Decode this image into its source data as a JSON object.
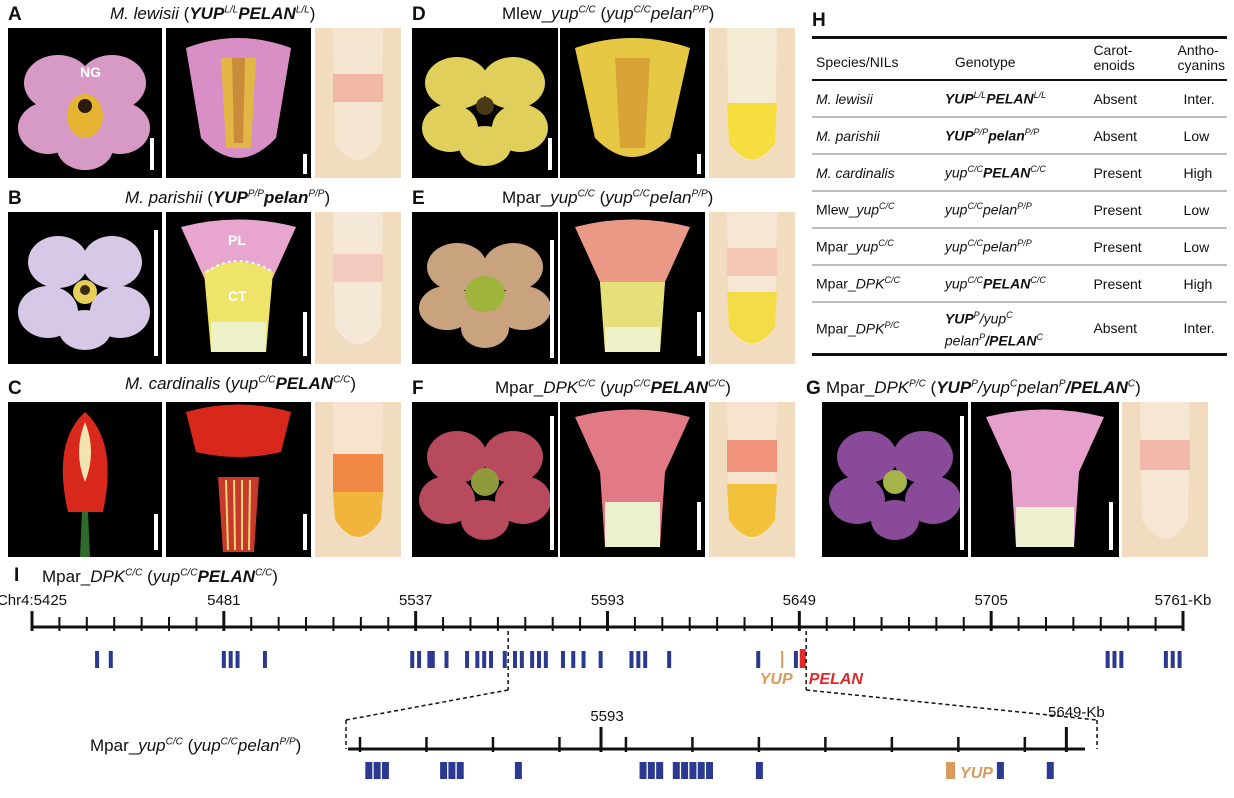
{
  "panels": {
    "A": {
      "letter": "A",
      "title_pre": "M. lewisii",
      "title_geno_a": "YUP",
      "title_sup_a": "L/L",
      "title_geno_b": "PELAN",
      "title_sup_b": "L/L",
      "label": "NG"
    },
    "B": {
      "letter": "B",
      "title_pre": "M. parishii",
      "title_geno_a": "YUP",
      "title_sup_a": "P/P",
      "title_geno_b": "pelan",
      "title_sup_b": "P/P",
      "label_pl": "PL",
      "label_ct": "CT"
    },
    "C": {
      "letter": "C",
      "title_pre": "M. cardinalis",
      "title_geno_a": "yup",
      "title_sup_a": "C/C",
      "title_geno_b": "PELAN",
      "title_sup_b": "C/C"
    },
    "D": {
      "letter": "D",
      "title_name": "Mlew_",
      "title_gene": "yup",
      "title_gsup": "C/C",
      "title_geno_a": "yup",
      "title_sup_a": "C/C",
      "title_geno_b": "pelan",
      "title_sup_b": "P/P"
    },
    "E": {
      "letter": "E",
      "title_name": "Mpar_",
      "title_gene": "yup",
      "title_gsup": "C/C",
      "title_geno_a": "yup",
      "title_sup_a": "C/C",
      "title_geno_b": "pelan",
      "title_sup_b": "P/P"
    },
    "F": {
      "letter": "F",
      "title_name": "Mpar_",
      "title_gene": "DPK",
      "title_gsup": "C/C",
      "title_geno_a": "yup",
      "title_sup_a": "C/C",
      "title_geno_b": "PELAN",
      "title_sup_b": "C/C"
    },
    "G": {
      "letter": "G",
      "title_name": "Mpar_",
      "title_gene": "DPK",
      "title_gsup": "P/C",
      "title_geno_a": "YUP",
      "title_sup_a": "P",
      "title_geno_mid": "/yup",
      "title_sup_mid": "C",
      "title_geno_b": "pelan",
      "title_sup_b": "P",
      "title_geno_c": "/PELAN",
      "title_sup_c": "C"
    }
  },
  "table": {
    "letter": "H",
    "headers": [
      "Species/NILs",
      "Genotype",
      "Carot-enoids",
      "Antho-cyanins"
    ],
    "header_c1": "Carot-",
    "header_c2": "enoids",
    "header_a1": "Antho-",
    "header_a2": "cyanins",
    "rows": [
      {
        "name": "M. lewisii",
        "g1": "YUP",
        "s1": "L/L",
        "g2": "PELAN",
        "s2": "L/L",
        "carotenoids": "Absent",
        "anthocyanins": "Inter."
      },
      {
        "name": "M. parishii",
        "g1": "YUP",
        "s1": "P/P",
        "g2": "pelan",
        "s2": "P/P",
        "carotenoids": "Absent",
        "anthocyanins": "Low"
      },
      {
        "name": "M. cardinalis",
        "g1": "yup",
        "s1": "C/C",
        "g2": "PELAN",
        "s2": "C/C",
        "carotenoids": "Present",
        "anthocyanins": "High"
      },
      {
        "name_a": "Mlew_",
        "name_b": "yup",
        "name_sup": "C/C",
        "g1": "yup",
        "s1": "C/C",
        "g2": "pelan",
        "s2": "P/P",
        "carotenoids": "Present",
        "anthocyanins": "Low"
      },
      {
        "name_a": "Mpar_",
        "name_b": "yup",
        "name_sup": "C/C",
        "g1": "yup",
        "s1": "C/C",
        "g2": "pelan",
        "s2": "P/P",
        "carotenoids": "Present",
        "anthocyanins": "Low"
      },
      {
        "name_a": "Mpar_",
        "name_b": "DPK",
        "name_sup": "C/C",
        "g1": "yup",
        "s1": "C/C",
        "g2": "PELAN",
        "s2": "C/C",
        "carotenoids": "Present",
        "anthocyanins": "High"
      },
      {
        "name_a": "Mpar_",
        "name_b": "DPK",
        "name_sup": "P/C",
        "g1": "YUP",
        "s1": "P",
        "g1b": "/yup",
        "s1b": "C",
        "g2": "pelan",
        "s2": "P",
        "g2b": "/PELAN",
        "s2b": "C",
        "carotenoids": "Absent",
        "anthocyanins": "Inter."
      }
    ]
  },
  "map": {
    "letter": "I",
    "title_name": "Mpar_",
    "title_gene": "DPK",
    "title_gsup": "C/C",
    "title_geno_a": "yup",
    "title_sup_a": "C/C",
    "title_geno_b": "PELAN",
    "title_sup_b": "C/C",
    "ticks_major": [
      "Chr4:5425",
      "5481",
      "5537",
      "5593",
      "5649",
      "5705",
      "5761-Kb"
    ],
    "kb_start": 5425,
    "kb_end": 5761,
    "genes_kb": [
      5444,
      5448,
      5481,
      5483,
      5485,
      5493,
      5536,
      5538,
      5541,
      5542,
      5546,
      5552,
      5555,
      5557,
      5559,
      5563,
      5566,
      5568,
      5571,
      5573,
      5575,
      5580,
      5583,
      5586,
      5591,
      5600,
      5602,
      5604,
      5611,
      5637,
      5648,
      5739,
      5741,
      5743,
      5756,
      5758,
      5760
    ],
    "yup_kb": 5644,
    "pelan_kb": 5650,
    "yup_label": "YUP",
    "pelan_label": "PELAN",
    "inset": {
      "title_name": "Mpar_",
      "title_gene": "yup",
      "title_gsup": "C/C",
      "title_geno_a": "yup",
      "title_sup_a": "C/C",
      "title_geno_b": "pelan",
      "title_sup_b": "P/P",
      "tick_left": "5593",
      "tick_right": "5649-Kb",
      "kb_start": 5564,
      "kb_end": 5651,
      "genes_kb": [
        5565,
        5566,
        5567,
        5574,
        5575,
        5576,
        5583,
        5598,
        5599,
        5600,
        5602,
        5603,
        5604,
        5605,
        5606,
        5612,
        5641,
        5647
      ],
      "yup_kb": 5635,
      "yup_label": "YUP"
    }
  },
  "colors": {
    "gene": "#2b3990",
    "yup": "#d99a5b",
    "pelan": "#e3282a"
  }
}
